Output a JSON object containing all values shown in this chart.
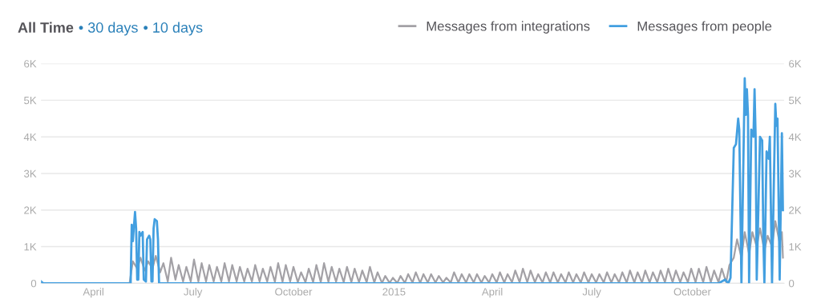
{
  "chart_data": {
    "type": "line",
    "title": "All Time",
    "annotations": [
      "• 30 days",
      "• 10 days"
    ],
    "xlim": [
      "2014-02-12",
      "2015-12-24"
    ],
    "xticks": [
      {
        "value": "2014-04-01",
        "label": "April"
      },
      {
        "value": "2014-07-01",
        "label": "July"
      },
      {
        "value": "2014-10-01",
        "label": "October"
      },
      {
        "value": "2015-01-01",
        "label": "2015"
      },
      {
        "value": "2015-04-01",
        "label": "April"
      },
      {
        "value": "2015-07-01",
        "label": "July"
      },
      {
        "value": "2015-10-01",
        "label": "October"
      }
    ],
    "ylim": [
      0,
      6000
    ],
    "yticks": [
      0,
      {
        "value": 1000,
        "label": "1K"
      },
      {
        "value": 2000,
        "label": "2K"
      },
      {
        "value": 3000,
        "label": "3K"
      },
      {
        "value": 4000,
        "label": "4K"
      },
      {
        "value": 5000,
        "label": "5K"
      },
      {
        "value": 6000,
        "label": "6K"
      }
    ],
    "y2lim": [
      0,
      6000
    ],
    "y2ticks": [
      0,
      {
        "value": 1000,
        "label": "1K"
      },
      {
        "value": 2000,
        "label": "2K"
      },
      {
        "value": 3000,
        "label": "3K"
      },
      {
        "value": 4000,
        "label": "4K"
      },
      {
        "value": 5000,
        "label": "5K"
      },
      {
        "value": 6000,
        "label": "6K"
      }
    ],
    "grid": "y",
    "legend": "top right",
    "marker": "none",
    "line_style": "solid",
    "series": [
      {
        "name": "Messages from integrations",
        "color": "#a3a1a6",
        "x": [
          "2014-02-12",
          "2014-05-04",
          "2014-05-07",
          "2014-05-11",
          "2014-05-14",
          "2014-05-18",
          "2014-05-21",
          "2014-05-25",
          "2014-05-28",
          "2014-06-01",
          "2014-06-04",
          "2014-06-08",
          "2014-06-11",
          "2014-06-15",
          "2014-06-18",
          "2014-06-22",
          "2014-06-25",
          "2014-06-29",
          "2014-07-02",
          "2014-07-06",
          "2014-07-09",
          "2014-07-13",
          "2014-07-16",
          "2014-07-20",
          "2014-07-23",
          "2014-07-27",
          "2014-07-30",
          "2014-08-03",
          "2014-08-06",
          "2014-08-10",
          "2014-08-13",
          "2014-08-17",
          "2014-08-20",
          "2014-08-24",
          "2014-08-27",
          "2014-08-31",
          "2014-09-03",
          "2014-09-07",
          "2014-09-10",
          "2014-09-14",
          "2014-09-17",
          "2014-09-21",
          "2014-09-24",
          "2014-09-28",
          "2014-10-01",
          "2014-10-05",
          "2014-10-08",
          "2014-10-12",
          "2014-10-15",
          "2014-10-19",
          "2014-10-22",
          "2014-10-26",
          "2014-10-29",
          "2014-11-02",
          "2014-11-05",
          "2014-11-09",
          "2014-11-12",
          "2014-11-16",
          "2014-11-19",
          "2014-11-23",
          "2014-11-26",
          "2014-11-30",
          "2014-12-03",
          "2014-12-07",
          "2014-12-10",
          "2014-12-14",
          "2014-12-17",
          "2014-12-21",
          "2014-12-24",
          "2014-12-28",
          "2014-12-31",
          "2015-01-04",
          "2015-01-07",
          "2015-01-11",
          "2015-01-14",
          "2015-01-18",
          "2015-01-21",
          "2015-01-25",
          "2015-01-28",
          "2015-02-01",
          "2015-02-04",
          "2015-02-08",
          "2015-02-11",
          "2015-02-15",
          "2015-02-18",
          "2015-02-22",
          "2015-02-25",
          "2015-03-01",
          "2015-03-04",
          "2015-03-08",
          "2015-03-11",
          "2015-03-15",
          "2015-03-18",
          "2015-03-22",
          "2015-03-25",
          "2015-03-29",
          "2015-04-01",
          "2015-04-05",
          "2015-04-08",
          "2015-04-12",
          "2015-04-15",
          "2015-04-19",
          "2015-04-22",
          "2015-04-26",
          "2015-04-29",
          "2015-05-03",
          "2015-05-06",
          "2015-05-10",
          "2015-05-13",
          "2015-05-17",
          "2015-05-20",
          "2015-05-24",
          "2015-05-27",
          "2015-05-31",
          "2015-06-03",
          "2015-06-07",
          "2015-06-10",
          "2015-06-14",
          "2015-06-17",
          "2015-06-21",
          "2015-06-24",
          "2015-06-28",
          "2015-07-01",
          "2015-07-05",
          "2015-07-08",
          "2015-07-12",
          "2015-07-15",
          "2015-07-19",
          "2015-07-22",
          "2015-07-26",
          "2015-07-29",
          "2015-08-02",
          "2015-08-05",
          "2015-08-09",
          "2015-08-12",
          "2015-08-16",
          "2015-08-19",
          "2015-08-23",
          "2015-08-26",
          "2015-08-30",
          "2015-09-02",
          "2015-09-06",
          "2015-09-09",
          "2015-09-13",
          "2015-09-16",
          "2015-09-20",
          "2015-09-23",
          "2015-09-27",
          "2015-09-30",
          "2015-10-04",
          "2015-10-07",
          "2015-10-11",
          "2015-10-14",
          "2015-10-18",
          "2015-10-21",
          "2015-10-25",
          "2015-10-28",
          "2015-11-01",
          "2015-11-04",
          "2015-11-08",
          "2015-11-11",
          "2015-11-15",
          "2015-11-18",
          "2015-11-22",
          "2015-11-25",
          "2015-11-29",
          "2015-12-02",
          "2015-12-06",
          "2015-12-09",
          "2015-12-13",
          "2015-12-16",
          "2015-12-20",
          "2015-12-22",
          "2015-12-23"
        ],
        "values": [
          0,
          0,
          600,
          400,
          700,
          350,
          600,
          400,
          750,
          300,
          550,
          50,
          700,
          100,
          500,
          50,
          450,
          50,
          650,
          50,
          550,
          50,
          500,
          50,
          450,
          50,
          550,
          50,
          500,
          50,
          450,
          50,
          400,
          50,
          500,
          50,
          400,
          50,
          450,
          40,
          550,
          40,
          500,
          50,
          450,
          30,
          300,
          30,
          400,
          30,
          500,
          30,
          550,
          40,
          450,
          40,
          400,
          30,
          450,
          30,
          400,
          30,
          350,
          30,
          450,
          20,
          300,
          10,
          200,
          10,
          150,
          10,
          200,
          10,
          250,
          20,
          300,
          10,
          250,
          20,
          250,
          20,
          200,
          20,
          150,
          20,
          300,
          20,
          250,
          20,
          250,
          20,
          250,
          20,
          200,
          20,
          250,
          20,
          300,
          20,
          250,
          30,
          350,
          30,
          400,
          30,
          350,
          30,
          250,
          20,
          300,
          20,
          300,
          20,
          250,
          20,
          300,
          20,
          250,
          20,
          300,
          20,
          250,
          20,
          250,
          20,
          300,
          20,
          250,
          20,
          300,
          20,
          350,
          20,
          300,
          20,
          350,
          20,
          300,
          30,
          350,
          30,
          400,
          30,
          350,
          30,
          300,
          30,
          400,
          30,
          400,
          30,
          450,
          30,
          350,
          30,
          400,
          30,
          500,
          700,
          1200,
          700,
          1400,
          800,
          1400,
          1000,
          1500,
          900,
          1300,
          1000,
          1700,
          1100,
          1400,
          700
        ]
      },
      {
        "name": "Messages from people",
        "color": "#439fe0",
        "x": [
          "2014-02-12",
          "2014-02-14",
          "2014-05-05",
          "2014-05-06",
          "2014-05-07",
          "2014-05-09",
          "2014-05-10",
          "2014-05-11",
          "2014-05-12",
          "2014-05-13",
          "2014-05-14",
          "2014-05-16",
          "2014-05-17",
          "2014-05-19",
          "2014-05-20",
          "2014-05-22",
          "2014-05-23",
          "2014-05-24",
          "2014-05-25",
          "2014-05-26",
          "2014-05-27",
          "2014-05-29",
          "2014-05-30",
          "2014-05-31",
          "2015-10-25",
          "2015-10-31",
          "2015-11-03",
          "2015-11-05",
          "2015-11-08",
          "2015-11-10",
          "2015-11-12",
          "2015-11-13",
          "2015-11-15",
          "2015-11-18",
          "2015-11-19",
          "2015-11-20",
          "2015-11-21",
          "2015-11-22",
          "2015-11-24",
          "2015-11-26",
          "2015-11-27",
          "2015-11-28",
          "2015-11-29",
          "2015-12-02",
          "2015-12-04",
          "2015-12-05",
          "2015-12-06",
          "2015-12-08",
          "2015-12-10",
          "2015-12-11",
          "2015-12-13",
          "2015-12-16",
          "2015-12-17",
          "2015-12-18",
          "2015-12-20",
          "2015-12-22",
          "2015-12-23"
        ],
        "values": [
          50,
          0,
          0,
          1600,
          1150,
          1950,
          1500,
          100,
          100,
          1400,
          1300,
          1400,
          100,
          50,
          1200,
          1300,
          1200,
          50,
          50,
          1500,
          1750,
          1700,
          1200,
          0,
          0,
          100,
          0,
          150,
          3700,
          3800,
          4500,
          4200,
          0,
          5600,
          4600,
          5300,
          4600,
          0,
          4200,
          4000,
          5300,
          4000,
          100,
          4000,
          3900,
          1300,
          0,
          3600,
          3400,
          4000,
          0,
          4900,
          4300,
          4500,
          100,
          4100,
          2000
        ]
      }
    ]
  }
}
